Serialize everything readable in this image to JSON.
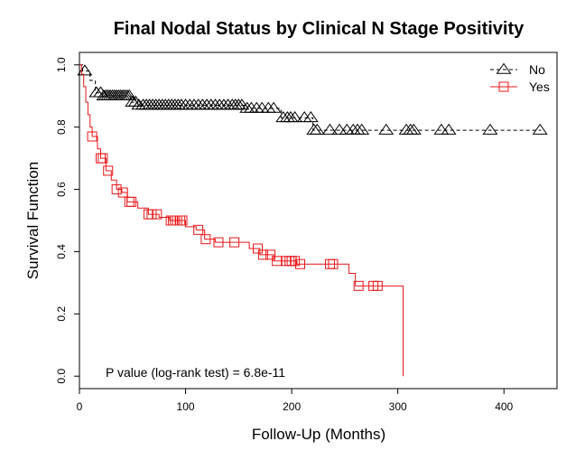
{
  "chart_data": {
    "type": "line",
    "title": "Final Nodal Status by Clinical N Stage Positivity",
    "xlabel": "Follow-Up (Months)",
    "ylabel": "Survival Function",
    "xlim": [
      0,
      450
    ],
    "ylim": [
      -0.04,
      1.04
    ],
    "xticks": [
      0,
      100,
      200,
      300,
      400
    ],
    "yticks": [
      0.0,
      0.2,
      0.4,
      0.6,
      0.8,
      1.0
    ],
    "ytick_labels": [
      "0.0",
      "0.2",
      "0.4",
      "0.6",
      "0.8",
      "1.0"
    ],
    "grid": false,
    "legend_position": "top-right",
    "annotation": "P value (log-rank test) = 6.8e-11",
    "series": [
      {
        "name": "No",
        "color": "#000000",
        "line_style": "dashed",
        "marker": "triangle",
        "steps": [
          [
            0,
            1.0
          ],
          [
            3,
            0.98
          ],
          [
            10,
            0.95
          ],
          [
            15,
            0.91
          ],
          [
            22,
            0.9
          ],
          [
            48,
            0.88
          ],
          [
            55,
            0.87
          ],
          [
            158,
            0.86
          ],
          [
            190,
            0.83
          ],
          [
            220,
            0.79
          ],
          [
            435,
            0.79
          ]
        ],
        "censored_x": [
          5,
          16,
          20,
          23,
          25,
          27,
          29,
          31,
          33,
          35,
          37,
          39,
          41,
          43,
          45,
          47,
          50,
          53,
          56,
          60,
          63,
          66,
          69,
          72,
          75,
          78,
          81,
          84,
          87,
          90,
          93,
          96,
          100,
          104,
          108,
          112,
          116,
          120,
          124,
          128,
          132,
          136,
          140,
          144,
          147,
          150,
          153,
          158,
          162,
          167,
          172,
          178,
          183,
          192,
          196,
          199,
          203,
          212,
          218,
          221,
          224,
          236,
          245,
          252,
          258,
          262,
          266,
          289,
          308,
          312,
          315,
          341,
          348,
          387,
          434
        ]
      },
      {
        "name": "Yes",
        "color": "#e8171a",
        "line_style": "solid",
        "marker": "square",
        "steps": [
          [
            0,
            1.0
          ],
          [
            2,
            0.97
          ],
          [
            4,
            0.93
          ],
          [
            6,
            0.88
          ],
          [
            8,
            0.84
          ],
          [
            10,
            0.8
          ],
          [
            12,
            0.77
          ],
          [
            17,
            0.73
          ],
          [
            20,
            0.7
          ],
          [
            25,
            0.66
          ],
          [
            30,
            0.63
          ],
          [
            35,
            0.6
          ],
          [
            40,
            0.59
          ],
          [
            45,
            0.56
          ],
          [
            55,
            0.54
          ],
          [
            65,
            0.52
          ],
          [
            75,
            0.51
          ],
          [
            85,
            0.5
          ],
          [
            100,
            0.48
          ],
          [
            110,
            0.47
          ],
          [
            118,
            0.44
          ],
          [
            128,
            0.43
          ],
          [
            160,
            0.41
          ],
          [
            170,
            0.39
          ],
          [
            183,
            0.37
          ],
          [
            205,
            0.36
          ],
          [
            250,
            0.36
          ],
          [
            254,
            0.33
          ],
          [
            260,
            0.29
          ],
          [
            305,
            0.29
          ],
          [
            305,
            0.0
          ]
        ],
        "censored_x": [
          12,
          20,
          22,
          27,
          35,
          41,
          47,
          49,
          65,
          68,
          73,
          86,
          88,
          90,
          92,
          95,
          97,
          112,
          119,
          131,
          146,
          168,
          173,
          180,
          186,
          195,
          198,
          200,
          203,
          208,
          236,
          239,
          263,
          277,
          281
        ]
      }
    ]
  }
}
